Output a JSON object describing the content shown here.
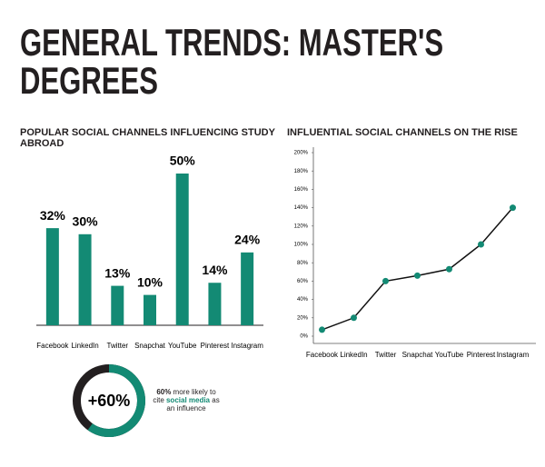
{
  "title": "GENERAL TRENDS: MASTER'S DEGREES",
  "chart_data": [
    {
      "type": "bar",
      "title": "POPULAR SOCIAL CHANNELS INFLUENCING STUDY ABROAD",
      "categories": [
        "Facebook",
        "LinkedIn",
        "Twitter",
        "Snapchat",
        "YouTube",
        "Pinterest",
        "Instagram"
      ],
      "values": [
        32,
        30,
        13,
        10,
        50,
        14,
        24
      ],
      "value_labels": [
        "32%",
        "30%",
        "13%",
        "10%",
        "50%",
        "14%",
        "24%"
      ],
      "color": "#138a74"
    },
    {
      "type": "line",
      "title": "INFLUENTIAL SOCIAL CHANNELS ON THE RISE",
      "categories": [
        "Facebook",
        "LinkedIn",
        "Twitter",
        "Snapchat",
        "YouTube",
        "Pinterest",
        "Instagram"
      ],
      "values": [
        7,
        20,
        60,
        66,
        73,
        100,
        140
      ],
      "color": "#138a74",
      "line_color": "#111111",
      "ylim": [
        0,
        200
      ],
      "yticks": [
        {
          "value": 0,
          "label": "0%"
        },
        {
          "value": 20,
          "label": "20%"
        },
        {
          "value": 40,
          "label": "40%"
        },
        {
          "value": 60,
          "label": "60%"
        },
        {
          "value": 80,
          "label": "80%"
        },
        {
          "value": 100,
          "label": "100%"
        },
        {
          "value": 120,
          "label": "120%"
        },
        {
          "value": 140,
          "label": "140%"
        },
        {
          "value": 160,
          "label": "160%"
        },
        {
          "value": 180,
          "label": "180%"
        },
        {
          "value": 200,
          "label": "200%"
        }
      ]
    },
    {
      "type": "donut",
      "value": 60,
      "value_label": "+60%",
      "color": "#138a74",
      "rest_color": "#231f20",
      "caption": [
        "60%",
        " more likely to cite ",
        "social media",
        " as an influence"
      ]
    }
  ]
}
